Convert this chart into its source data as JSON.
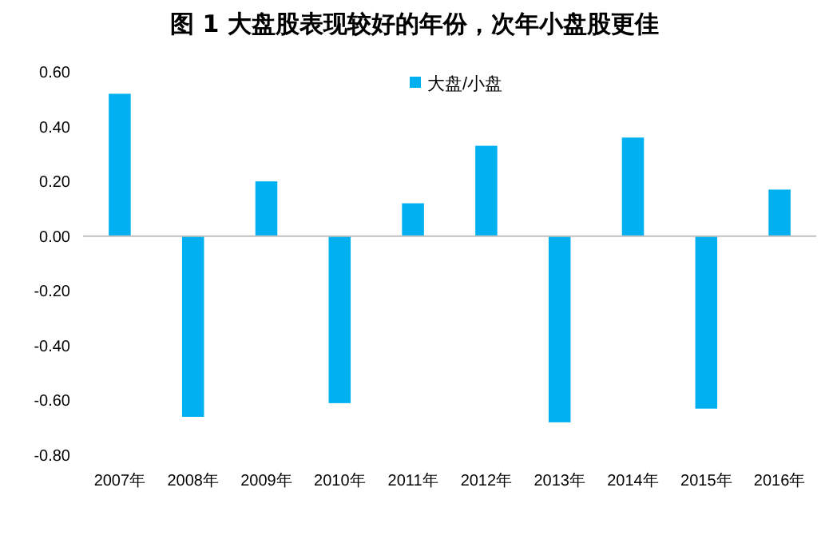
{
  "chart_data": {
    "type": "bar",
    "title": "图 1  大盘股表现较好的年份，次年小盘股更佳",
    "categories": [
      "2007年",
      "2008年",
      "2009年",
      "2010年",
      "2011年",
      "2012年",
      "2013年",
      "2014年",
      "2015年",
      "2016年"
    ],
    "series": [
      {
        "name": "大盘/小盘",
        "color": "#00b0f0",
        "values": [
          0.52,
          -0.66,
          0.2,
          -0.61,
          0.12,
          0.33,
          -0.68,
          0.36,
          -0.63,
          0.17
        ]
      }
    ],
    "ylim": [
      -0.8,
      0.6
    ],
    "yticks": [
      {
        "value": -0.8,
        "label": "-0.80"
      },
      {
        "value": -0.6,
        "label": "-0.60"
      },
      {
        "value": -0.4,
        "label": "-0.40"
      },
      {
        "value": -0.2,
        "label": "-0.20"
      },
      {
        "value": 0,
        "label": "0.00"
      },
      {
        "value": 0.2,
        "label": "0.20"
      },
      {
        "value": 0.4,
        "label": "0.40"
      },
      {
        "value": 0.6,
        "label": "0.60"
      }
    ],
    "legend": "top"
  }
}
